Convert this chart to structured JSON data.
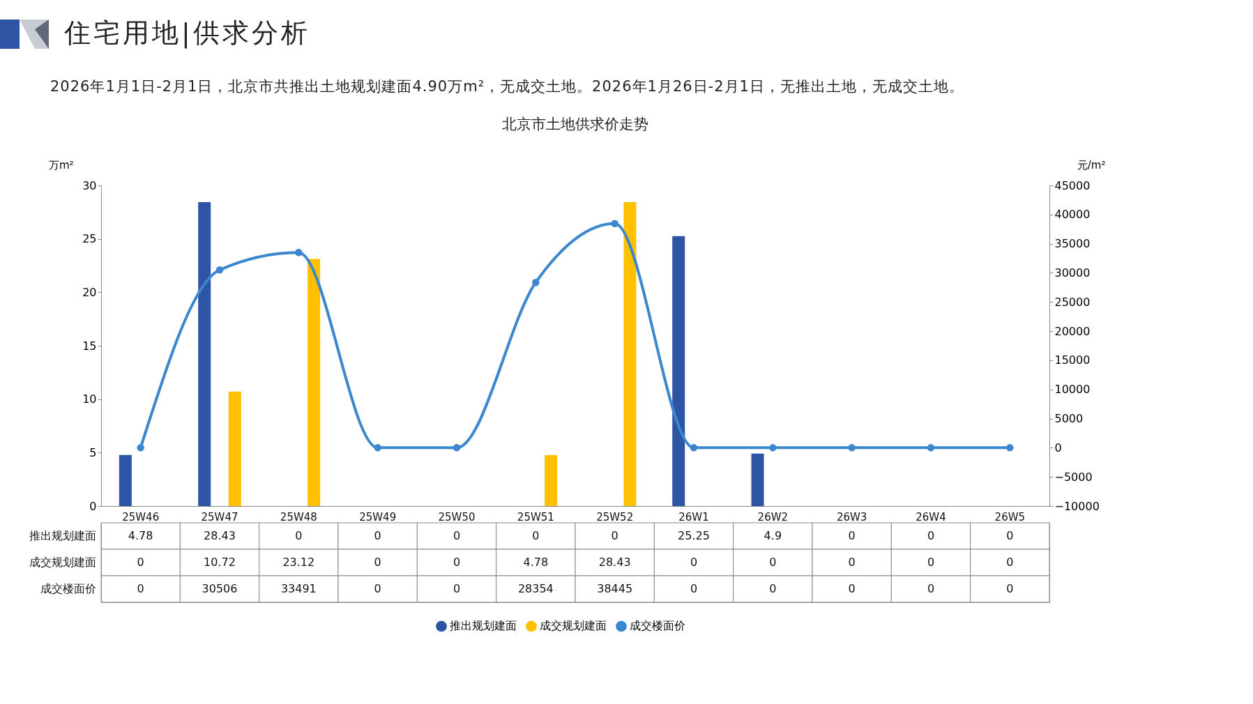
{
  "chart_data": {
    "type": "bar",
    "title": "北京市土地供求价走势",
    "subtitle": "2026年1月1日-2月1日，北京市共推出土地规划建面4.90万m²，无成交土地。2026年1月26日-2月1日，无推出土地，无成交土地。",
    "annotations": [
      "住宅用地|供求分析"
    ],
    "ylabel": "万m²",
    "y2label": "元/m²",
    "categories": [
      "25W46",
      "25W47",
      "25W48",
      "25W49",
      "25W50",
      "25W51",
      "25W52",
      "26W1",
      "26W2",
      "26W3",
      "26W4",
      "26W5"
    ],
    "series": [
      {
        "name": "推出规划建面",
        "color": "#2e54a4",
        "values": [
          4.78,
          28.43,
          0,
          0,
          0,
          0,
          0,
          25.25,
          4.9,
          0,
          0,
          0
        ]
      },
      {
        "name": "成交规划建面",
        "color": "#ffc000",
        "values": [
          0,
          10.72,
          23.12,
          0,
          0,
          4.78,
          28.43,
          0,
          0,
          0,
          0,
          0
        ]
      },
      {
        "name": "成交楼面价",
        "type": "line",
        "axis": "y2",
        "color": "#3a87d0",
        "values": [
          0,
          30506,
          33491,
          0,
          0,
          28354,
          38445,
          0,
          0,
          0,
          0,
          0
        ]
      }
    ],
    "ylim": [
      0,
      30
    ],
    "yticks": [
      0,
      5,
      10,
      15,
      20,
      25,
      30
    ],
    "y2lim": [
      -10000,
      45000
    ],
    "y2ticks": [
      -10000,
      -5000,
      0,
      5000,
      10000,
      15000,
      20000,
      25000,
      30000,
      35000,
      40000,
      45000
    ],
    "data_labels": true,
    "legend": "bottom",
    "grid": false,
    "marker": "circle",
    "line_style": "solid"
  }
}
